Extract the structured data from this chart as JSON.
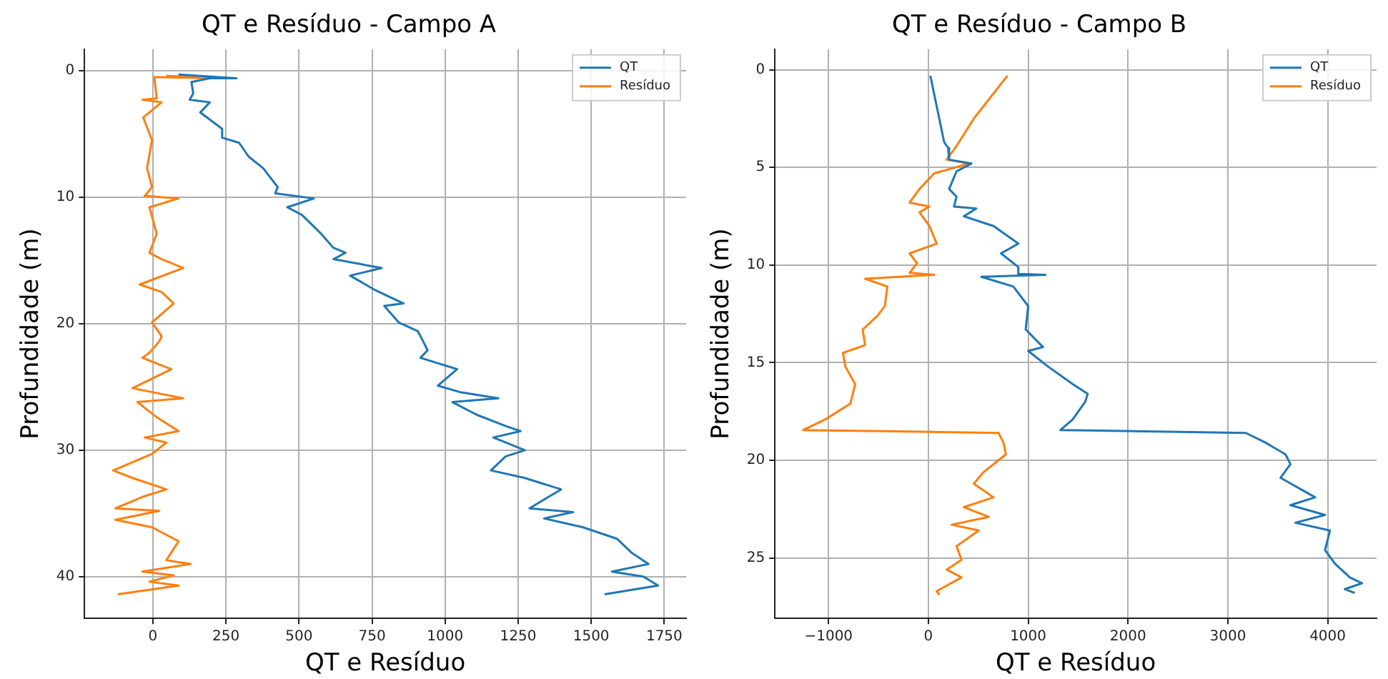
{
  "chart_data": [
    {
      "type": "line",
      "title": "QT e Resíduo - Campo A",
      "xlabel": "QT e Resíduo",
      "ylabel": "Profundidade (m)",
      "xlim": [
        -234,
        1825
      ],
      "ylim": [
        43.3,
        -1.7
      ],
      "xticks": [
        0,
        250,
        500,
        750,
        1000,
        1250,
        1500,
        1750
      ],
      "yticks": [
        0,
        10,
        20,
        30,
        40
      ],
      "grid": true,
      "legend": "top right",
      "marker": "none",
      "series": [
        {
          "name": "QT",
          "color": "#1f77b4",
          "x": [
            88,
            286,
            195,
            132,
            138,
            126,
            195,
            162,
            237,
            237,
            295,
            328,
            377,
            427,
            419,
            551,
            460,
            510,
            576,
            618,
            659,
            618,
            783,
            675,
            757,
            858,
            792,
            841,
            907,
            925,
            940,
            916,
            1041,
            975,
            1049,
            1182,
            1025,
            1108,
            1208,
            1258,
            1165,
            1273,
            1207,
            1157,
            1273,
            1397,
            1289,
            1438,
            1339,
            1472,
            1588,
            1638,
            1696,
            1571,
            1679,
            1729,
            1546
          ],
          "values": [
            0.3,
            0.6,
            0.6,
            0.9,
            1.8,
            2.3,
            2.5,
            3.3,
            4.6,
            5.3,
            5.7,
            6.8,
            7.7,
            9.2,
            9.7,
            10.1,
            10.8,
            11.4,
            12.9,
            14.0,
            14.4,
            14.9,
            15.6,
            16.2,
            17.3,
            18.4,
            18.6,
            19.9,
            20.6,
            21.4,
            22.1,
            22.7,
            23.6,
            24.9,
            25.4,
            25.9,
            26.2,
            27.2,
            28.1,
            28.5,
            29.0,
            30.0,
            30.5,
            31.6,
            32.2,
            33.1,
            34.6,
            34.9,
            35.4,
            36.1,
            37.0,
            38.1,
            39.0,
            39.6,
            40.0,
            40.7,
            41.4
          ]
        },
        {
          "name": "Resíduo",
          "color": "#ff7f0e",
          "x": [
            46,
            195,
            5,
            13,
            -36,
            30,
            -33,
            -3,
            -20,
            -3,
            -28,
            88,
            -12,
            13,
            -12,
            30,
            104,
            -45,
            30,
            71,
            -3,
            30,
            22,
            -12,
            -36,
            63,
            -70,
            104,
            -53,
            13,
            88,
            -28,
            46,
            -3,
            -136,
            -70,
            46,
            -36,
            -128,
            22,
            -128,
            -3,
            88,
            46,
            129,
            -36,
            71,
            -12,
            88,
            -120
          ],
          "values": [
            0.4,
            0.6,
            0.5,
            2.2,
            2.3,
            2.5,
            3.7,
            5.5,
            7.7,
            9.2,
            9.9,
            10.1,
            10.8,
            12.9,
            14.4,
            14.9,
            15.6,
            16.9,
            17.5,
            18.4,
            19.9,
            21.0,
            21.4,
            22.3,
            22.7,
            23.6,
            25.1,
            25.9,
            26.2,
            27.4,
            28.5,
            29.0,
            29.4,
            30.3,
            31.6,
            32.2,
            33.1,
            33.7,
            34.6,
            34.8,
            35.5,
            36.1,
            37.2,
            38.7,
            39.0,
            39.6,
            39.9,
            40.4,
            40.7,
            41.4
          ]
        }
      ]
    },
    {
      "type": "line",
      "title": "QT e Resíduo - Campo B",
      "xlabel": "QT e Resíduo",
      "ylabel": "Profundidade (m)",
      "xlim": [
        -1537,
        4490
      ],
      "ylim": [
        28.1,
        -1.06
      ],
      "xticks": [
        -1000,
        0,
        1000,
        2000,
        3000,
        4000
      ],
      "yticks": [
        0,
        5,
        10,
        15,
        20,
        25
      ],
      "grid": true,
      "legend": "top right",
      "marker": "none",
      "series": [
        {
          "name": "QT",
          "color": "#1f77b4",
          "x": [
            20,
            109,
            158,
            198,
            208,
            431,
            282,
            208,
            282,
            257,
            480,
            356,
            653,
            901,
            728,
            901,
            901,
            1173,
            530,
            851,
            1000,
            975,
            1149,
            1000,
            1199,
            1447,
            1596,
            1571,
            1447,
            1323,
            3181,
            3379,
            3578,
            3627,
            3528,
            3875,
            3627,
            3974,
            3676,
            4023,
            3974,
            4073,
            4222,
            4345,
            4172,
            4271
          ],
          "values": [
            0.3,
            2.5,
            3.7,
            4.0,
            4.6,
            4.8,
            5.2,
            6.1,
            6.5,
            7.0,
            7.1,
            7.5,
            8.0,
            8.9,
            9.4,
            10.1,
            10.45,
            10.5,
            10.6,
            11.1,
            12.1,
            13.3,
            14.2,
            14.4,
            15.2,
            16.1,
            16.6,
            17.0,
            17.9,
            18.45,
            18.6,
            19.1,
            19.7,
            20.2,
            20.9,
            21.9,
            22.3,
            22.8,
            23.2,
            23.6,
            24.6,
            25.3,
            26.0,
            26.3,
            26.6,
            26.8
          ]
        },
        {
          "name": "Resíduo",
          "color": "#ff7f0e",
          "x": [
            792,
            455,
            282,
            183,
            406,
            59,
            -89,
            -188,
            10,
            -89,
            10,
            84,
            -188,
            -114,
            -188,
            59,
            -634,
            -411,
            -436,
            -510,
            -658,
            -634,
            -856,
            -832,
            -733,
            -782,
            -1030,
            -1254,
            703,
            752,
            777,
            554,
            455,
            653,
            356,
            604,
            233,
            505,
            282,
            332,
            183,
            332,
            84,
            109
          ],
          "values": [
            0.3,
            2.5,
            3.9,
            4.6,
            4.8,
            5.3,
            6.1,
            6.8,
            7.0,
            7.3,
            8.0,
            8.9,
            9.4,
            9.9,
            10.4,
            10.5,
            10.7,
            11.1,
            12.1,
            12.6,
            13.3,
            14.1,
            14.5,
            15.2,
            16.1,
            17.1,
            17.9,
            18.45,
            18.6,
            19.1,
            19.7,
            20.6,
            21.2,
            21.9,
            22.4,
            22.9,
            23.3,
            23.6,
            24.4,
            25.1,
            25.6,
            26.0,
            26.7,
            26.9
          ]
        }
      ]
    }
  ]
}
